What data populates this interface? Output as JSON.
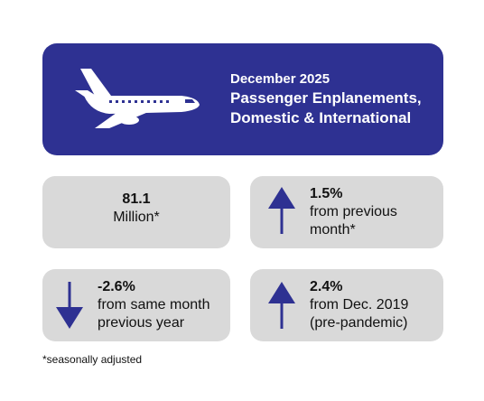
{
  "banner": {
    "icon": "airplane-icon",
    "month": "December 2025",
    "title_line1": "Passenger Enplanements,",
    "title_line2": "Domestic & International",
    "color": "#2e3192"
  },
  "stats": {
    "total": {
      "value": "81.1",
      "label": "Million*"
    },
    "prev_month": {
      "direction": "up",
      "value": "1.5%",
      "line1": "from previous",
      "line2": "month*"
    },
    "prev_year": {
      "direction": "down",
      "value": "-2.6%",
      "line1": "from same month",
      "line2": "previous year"
    },
    "pre_pandemic": {
      "direction": "up",
      "value": "2.4%",
      "line1": "from Dec. 2019",
      "line2": "(pre-pandemic)"
    }
  },
  "arrow_color": "#2e3192",
  "card_color": "#d9d9d9",
  "footnote": "*seasonally adjusted"
}
